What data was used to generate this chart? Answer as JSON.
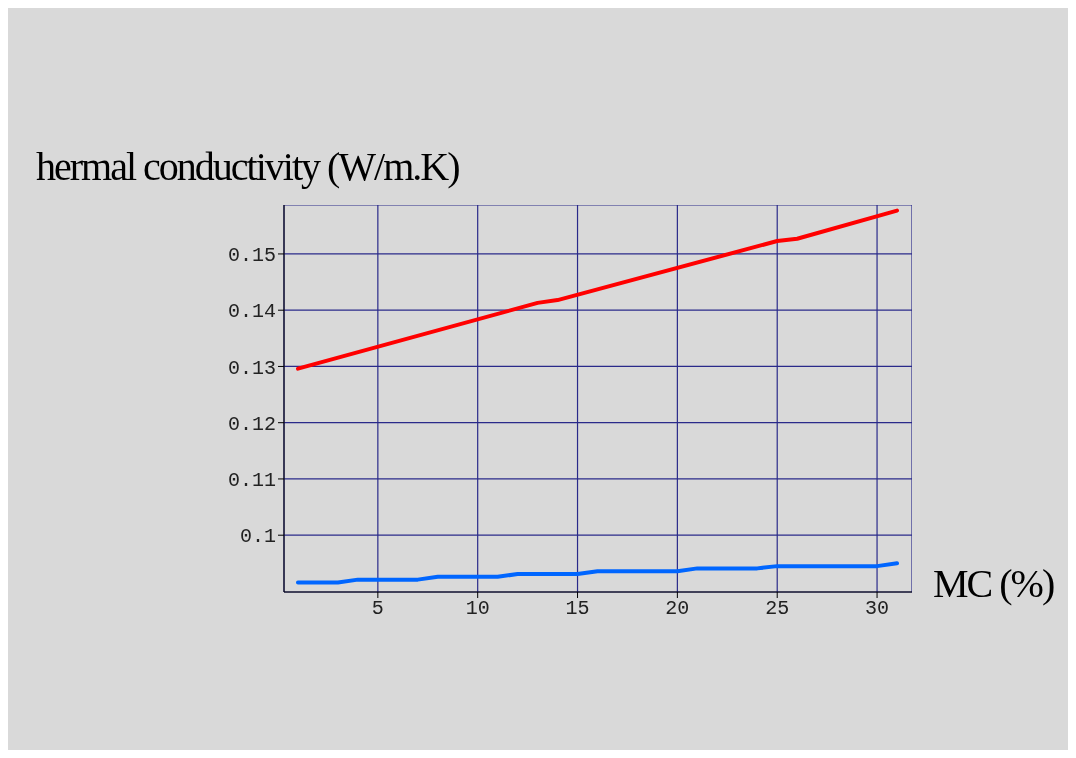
{
  "chart_data": {
    "type": "line",
    "ylabel": "hermal conductivity (W/m.K)",
    "xlabel": "MC (%)",
    "xlim": [
      0.3,
      31.75
    ],
    "xticks": [
      5,
      10,
      15,
      20,
      25,
      30
    ],
    "ylim": [
      0.0899,
      0.1587
    ],
    "yticks": [
      0.1,
      0.11,
      0.12,
      0.13,
      0.14,
      0.15
    ],
    "grid": true,
    "series": [
      {
        "color": "#ff0000",
        "x": [
          1,
          13,
          14,
          25,
          26,
          31
        ],
        "values": [
          0.1296,
          0.1413,
          0.1418,
          0.1523,
          0.1527,
          0.1577
        ]
      },
      {
        "color": "#0066ff",
        "x": [
          1,
          3,
          4,
          7,
          8,
          11,
          12,
          15,
          16,
          20,
          21,
          24,
          25,
          30,
          31
        ],
        "values": [
          0.0916,
          0.0916,
          0.0921,
          0.0921,
          0.0926,
          0.0926,
          0.0931,
          0.0931,
          0.0936,
          0.0936,
          0.0941,
          0.0941,
          0.0945,
          0.0945,
          0.095
        ]
      }
    ]
  }
}
